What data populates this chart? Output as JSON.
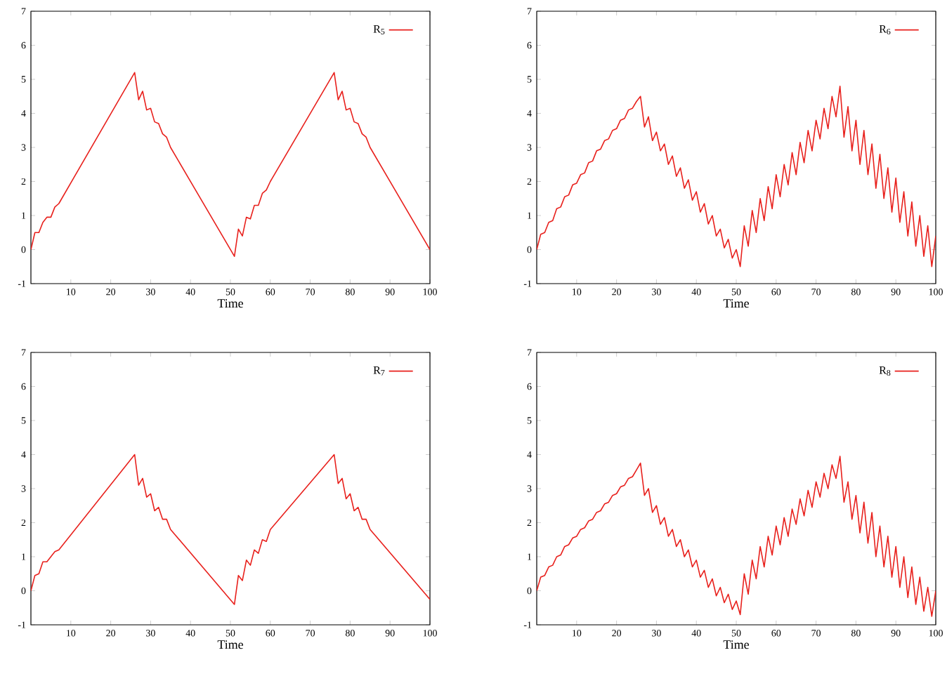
{
  "chart_data": [
    {
      "type": "line",
      "xlabel": "Time",
      "xlim": [
        0,
        100
      ],
      "xticks": [
        10,
        20,
        30,
        40,
        50,
        60,
        70,
        80,
        90,
        100
      ],
      "ylim": [
        -1,
        7
      ],
      "yticks": [
        -1,
        0,
        1,
        2,
        3,
        4,
        5,
        6,
        7
      ],
      "legend": "top right",
      "series": [
        {
          "name": "R$_{5}$",
          "color": "#e8201c",
          "x": [
            0,
            1,
            2,
            3,
            4,
            5,
            6,
            7,
            26,
            27,
            28,
            29,
            30,
            31,
            32,
            33,
            34,
            35,
            51,
            52,
            53,
            54,
            55,
            56,
            57,
            58,
            59,
            60,
            76,
            77,
            78,
            79,
            80,
            81,
            82,
            83,
            84,
            85,
            100
          ],
          "values": [
            0,
            0.5,
            0.5,
            0.8,
            0.95,
            0.95,
            1.25,
            1.35,
            5.2,
            4.4,
            4.65,
            4.1,
            4.15,
            3.75,
            3.7,
            3.4,
            3.3,
            3.0,
            -0.2,
            0.6,
            0.4,
            0.95,
            0.9,
            1.3,
            1.3,
            1.65,
            1.75,
            2.0,
            5.2,
            4.4,
            4.65,
            4.1,
            4.15,
            3.75,
            3.7,
            3.4,
            3.3,
            3.0,
            0.0
          ]
        }
      ]
    },
    {
      "type": "line",
      "xlabel": "Time",
      "xlim": [
        0,
        100
      ],
      "xticks": [
        10,
        20,
        30,
        40,
        50,
        60,
        70,
        80,
        90,
        100
      ],
      "ylim": [
        -1,
        7
      ],
      "yticks": [
        -1,
        0,
        1,
        2,
        3,
        4,
        5,
        6,
        7
      ],
      "legend": "top right",
      "series": [
        {
          "name": "R$_{6}$",
          "color": "#e8201c",
          "x": [
            0,
            1,
            2,
            3,
            4,
            5,
            6,
            7,
            8,
            9,
            10,
            11,
            12,
            13,
            14,
            15,
            16,
            17,
            18,
            19,
            20,
            21,
            22,
            23,
            24,
            25,
            26,
            27,
            28,
            29,
            30,
            31,
            32,
            33,
            34,
            35,
            36,
            37,
            38,
            39,
            40,
            41,
            42,
            43,
            44,
            45,
            46,
            47,
            48,
            49,
            50,
            51,
            52,
            53,
            54,
            55,
            56,
            57,
            58,
            59,
            60,
            61,
            62,
            63,
            64,
            65,
            66,
            67,
            68,
            69,
            70,
            71,
            72,
            73,
            74,
            75,
            76,
            77,
            78,
            79,
            80,
            81,
            82,
            83,
            84,
            85,
            86,
            87,
            88,
            89,
            90,
            91,
            92,
            93,
            94,
            95,
            96,
            97,
            98,
            99,
            100
          ],
          "values": [
            0,
            0.45,
            0.5,
            0.8,
            0.85,
            1.2,
            1.25,
            1.55,
            1.6,
            1.9,
            1.95,
            2.2,
            2.25,
            2.55,
            2.6,
            2.9,
            2.95,
            3.2,
            3.25,
            3.5,
            3.55,
            3.8,
            3.85,
            4.1,
            4.15,
            4.35,
            4.5,
            3.6,
            3.9,
            3.2,
            3.45,
            2.9,
            3.1,
            2.5,
            2.75,
            2.15,
            2.4,
            1.8,
            2.05,
            1.45,
            1.7,
            1.1,
            1.35,
            0.75,
            1.0,
            0.4,
            0.6,
            0.05,
            0.3,
            -0.25,
            0.0,
            -0.5,
            0.7,
            0.1,
            1.15,
            0.5,
            1.5,
            0.85,
            1.85,
            1.2,
            2.2,
            1.55,
            2.5,
            1.9,
            2.85,
            2.2,
            3.15,
            2.55,
            3.5,
            2.9,
            3.8,
            3.25,
            4.15,
            3.55,
            4.5,
            3.9,
            4.8,
            3.3,
            4.2,
            2.9,
            3.8,
            2.5,
            3.5,
            2.2,
            3.1,
            1.8,
            2.8,
            1.5,
            2.4,
            1.1,
            2.1,
            0.8,
            1.7,
            0.4,
            1.4,
            0.1,
            1.0,
            -0.2,
            0.7,
            -0.5,
            0.4
          ]
        }
      ]
    },
    {
      "type": "line",
      "xlabel": "Time",
      "xlim": [
        0,
        100
      ],
      "xticks": [
        10,
        20,
        30,
        40,
        50,
        60,
        70,
        80,
        90,
        100
      ],
      "ylim": [
        -1,
        7
      ],
      "yticks": [
        -1,
        0,
        1,
        2,
        3,
        4,
        5,
        6,
        7
      ],
      "legend": "top right",
      "series": [
        {
          "name": "R$_{7}$",
          "color": "#e8201c",
          "x": [
            0,
            1,
            2,
            3,
            4,
            5,
            6,
            7,
            26,
            27,
            28,
            29,
            30,
            31,
            32,
            33,
            34,
            35,
            51,
            52,
            53,
            54,
            55,
            56,
            57,
            58,
            59,
            60,
            76,
            77,
            78,
            79,
            80,
            81,
            82,
            83,
            84,
            85,
            100
          ],
          "values": [
            0,
            0.45,
            0.5,
            0.85,
            0.85,
            1.0,
            1.15,
            1.2,
            4.0,
            3.1,
            3.3,
            2.75,
            2.85,
            2.35,
            2.45,
            2.1,
            2.1,
            1.8,
            -0.4,
            0.45,
            0.3,
            0.9,
            0.75,
            1.2,
            1.1,
            1.5,
            1.45,
            1.8,
            4.0,
            3.15,
            3.3,
            2.7,
            2.85,
            2.35,
            2.45,
            2.1,
            2.1,
            1.8,
            -0.25
          ]
        }
      ]
    },
    {
      "type": "line",
      "xlabel": "Time",
      "xlim": [
        0,
        100
      ],
      "xticks": [
        10,
        20,
        30,
        40,
        50,
        60,
        70,
        80,
        90,
        100
      ],
      "ylim": [
        -1,
        7
      ],
      "yticks": [
        -1,
        0,
        1,
        2,
        3,
        4,
        5,
        6,
        7
      ],
      "legend": "top right",
      "series": [
        {
          "name": "R$_{8}$",
          "color": "#e8201c",
          "x": [
            0,
            1,
            2,
            3,
            4,
            5,
            6,
            7,
            8,
            9,
            10,
            11,
            12,
            13,
            14,
            15,
            16,
            17,
            18,
            19,
            20,
            21,
            22,
            23,
            24,
            25,
            26,
            27,
            28,
            29,
            30,
            31,
            32,
            33,
            34,
            35,
            36,
            37,
            38,
            39,
            40,
            41,
            42,
            43,
            44,
            45,
            46,
            47,
            48,
            49,
            50,
            51,
            52,
            53,
            54,
            55,
            56,
            57,
            58,
            59,
            60,
            61,
            62,
            63,
            64,
            65,
            66,
            67,
            68,
            69,
            70,
            71,
            72,
            73,
            74,
            75,
            76,
            77,
            78,
            79,
            80,
            81,
            82,
            83,
            84,
            85,
            86,
            87,
            88,
            89,
            90,
            91,
            92,
            93,
            94,
            95,
            96,
            97,
            98,
            99,
            100
          ],
          "values": [
            0,
            0.4,
            0.45,
            0.7,
            0.75,
            1.0,
            1.05,
            1.3,
            1.35,
            1.55,
            1.6,
            1.8,
            1.85,
            2.05,
            2.1,
            2.3,
            2.35,
            2.55,
            2.6,
            2.8,
            2.85,
            3.05,
            3.1,
            3.3,
            3.35,
            3.55,
            3.75,
            2.8,
            3.0,
            2.3,
            2.5,
            1.95,
            2.15,
            1.6,
            1.8,
            1.3,
            1.5,
            1.0,
            1.2,
            0.7,
            0.9,
            0.4,
            0.6,
            0.1,
            0.35,
            -0.15,
            0.1,
            -0.35,
            -0.1,
            -0.55,
            -0.3,
            -0.7,
            0.5,
            -0.1,
            0.9,
            0.35,
            1.3,
            0.7,
            1.6,
            1.05,
            1.9,
            1.35,
            2.15,
            1.6,
            2.4,
            1.95,
            2.7,
            2.2,
            2.95,
            2.45,
            3.2,
            2.75,
            3.45,
            3.0,
            3.7,
            3.3,
            3.95,
            2.6,
            3.2,
            2.1,
            2.8,
            1.7,
            2.6,
            1.4,
            2.3,
            1.0,
            1.9,
            0.7,
            1.6,
            0.4,
            1.3,
            0.1,
            1.0,
            -0.2,
            0.7,
            -0.4,
            0.4,
            -0.6,
            0.1,
            -0.75,
            0.0
          ]
        }
      ]
    }
  ]
}
